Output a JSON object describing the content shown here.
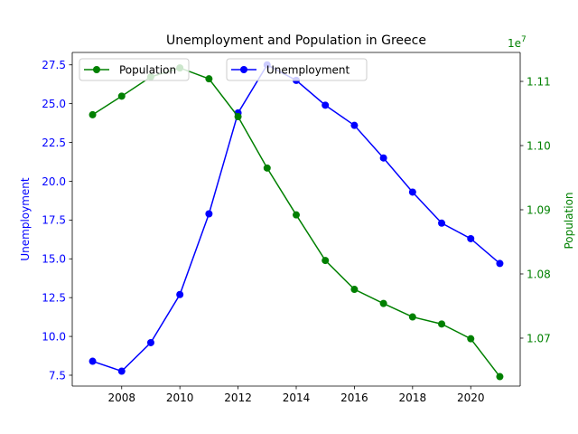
{
  "chart_data": {
    "type": "line",
    "title": "Unemployment and Population in Greece",
    "x": [
      2007,
      2008,
      2009,
      2010,
      2011,
      2012,
      2013,
      2014,
      2015,
      2016,
      2017,
      2018,
      2019,
      2020,
      2021
    ],
    "xlim": [
      2006.3,
      2021.7
    ],
    "xticks": [
      2008,
      2010,
      2012,
      2014,
      2016,
      2018,
      2020
    ],
    "left_axis": {
      "label": "Unemployment",
      "color": "#0000ff",
      "ylim": [
        6.8,
        28.3
      ],
      "ticks": [
        7.5,
        10.0,
        12.5,
        15.0,
        17.5,
        20.0,
        22.5,
        25.0,
        27.5
      ],
      "tick_labels": [
        "7.5",
        "10.0",
        "12.5",
        "15.0",
        "17.5",
        "20.0",
        "22.5",
        "25.0",
        "27.5"
      ]
    },
    "right_axis": {
      "label": "Population",
      "color": "#008000",
      "multiplier": "1e7",
      "ylim": [
        10.6253,
        11.1451
      ],
      "ticks": [
        10.7,
        10.8,
        10.9,
        11.0,
        11.1
      ],
      "tick_labels": [
        "1.07",
        "1.08",
        "1.09",
        "1.10",
        "1.11"
      ]
    },
    "series": [
      {
        "name": "Unemployment",
        "axis": "left",
        "color": "#0000ff",
        "values": [
          8.4,
          7.76,
          9.6,
          12.7,
          17.9,
          24.4,
          27.5,
          26.5,
          24.9,
          23.6,
          21.5,
          19.3,
          17.3,
          16.3,
          14.7
        ]
      },
      {
        "name": "Population",
        "axis": "right",
        "color": "#008000",
        "values": [
          11.048,
          11.077,
          11.107,
          11.121,
          11.104,
          11.045,
          10.965,
          10.892,
          10.821,
          10.776,
          10.754,
          10.733,
          10.722,
          10.699,
          10.64
        ]
      }
    ],
    "legends": [
      {
        "position": "top-left",
        "entries": [
          "Population"
        ]
      },
      {
        "position": "top-center",
        "entries": [
          "Unemployment"
        ]
      }
    ],
    "grid": false
  }
}
